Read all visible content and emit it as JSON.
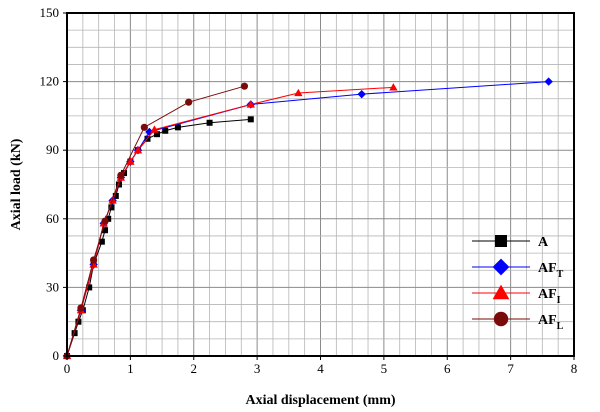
{
  "chart_data": {
    "type": "line",
    "xlabel": "Axial displacement (mm)",
    "ylabel": "Axial load (kN)",
    "xlim": [
      0,
      8
    ],
    "ylim": [
      0,
      150
    ],
    "xticks": [
      0,
      1,
      2,
      3,
      4,
      5,
      6,
      7,
      8
    ],
    "yticks": [
      0,
      30,
      60,
      90,
      120,
      150
    ],
    "grid": true,
    "legend_position": "bottom-right",
    "series": [
      {
        "name": "A",
        "name_base": "A",
        "name_sub": "",
        "color": "#000000",
        "marker": "square",
        "points": [
          [
            0,
            0
          ],
          [
            0.12,
            10
          ],
          [
            0.18,
            15
          ],
          [
            0.25,
            20
          ],
          [
            0.35,
            30
          ],
          [
            0.42,
            40
          ],
          [
            0.55,
            50
          ],
          [
            0.6,
            55
          ],
          [
            0.65,
            60
          ],
          [
            0.7,
            65
          ],
          [
            0.77,
            70
          ],
          [
            0.82,
            75
          ],
          [
            0.9,
            80
          ],
          [
            1.0,
            85
          ],
          [
            1.12,
            90
          ],
          [
            1.27,
            95
          ],
          [
            1.42,
            97
          ],
          [
            1.55,
            98.5
          ],
          [
            1.75,
            100
          ],
          [
            2.25,
            102
          ],
          [
            2.9,
            103.5
          ]
        ]
      },
      {
        "name": "AFT",
        "name_base": "AF",
        "name_sub": "T",
        "color": "#0000ff",
        "marker": "diamond",
        "points": [
          [
            0,
            0
          ],
          [
            0.22,
            20
          ],
          [
            0.42,
            40
          ],
          [
            0.58,
            58
          ],
          [
            0.72,
            68
          ],
          [
            0.85,
            78
          ],
          [
            1.0,
            85
          ],
          [
            1.12,
            90
          ],
          [
            1.3,
            98
          ],
          [
            2.9,
            110
          ],
          [
            4.65,
            114.5
          ],
          [
            7.6,
            120
          ]
        ]
      },
      {
        "name": "AFI",
        "name_base": "AF",
        "name_sub": "I",
        "color": "#ff0000",
        "marker": "triangle",
        "points": [
          [
            0,
            0
          ],
          [
            0.22,
            20
          ],
          [
            0.42,
            40
          ],
          [
            0.58,
            58
          ],
          [
            0.72,
            68
          ],
          [
            0.85,
            78
          ],
          [
            1.0,
            85
          ],
          [
            1.12,
            90
          ],
          [
            1.38,
            99
          ],
          [
            2.9,
            110
          ],
          [
            3.65,
            115
          ],
          [
            5.15,
            117.5
          ]
        ]
      },
      {
        "name": "AFL",
        "name_base": "AF",
        "name_sub": "L",
        "color": "#7b0a0a",
        "marker": "circle",
        "points": [
          [
            0,
            0
          ],
          [
            0.22,
            21
          ],
          [
            0.42,
            42
          ],
          [
            0.6,
            59
          ],
          [
            0.85,
            79
          ],
          [
            1.22,
            100
          ],
          [
            1.92,
            111
          ],
          [
            2.8,
            118
          ]
        ]
      }
    ]
  }
}
